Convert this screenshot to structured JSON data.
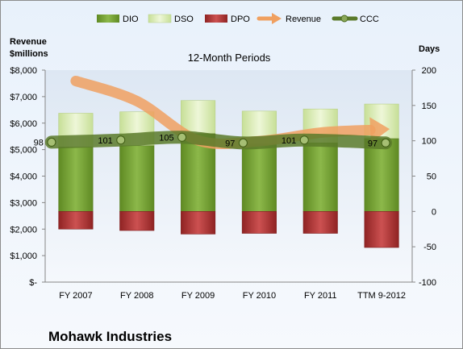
{
  "chart_data": {
    "type": "bar",
    "title": "12-Month Periods",
    "footer": "Mohawk Industries",
    "categories": [
      "FY 2007",
      "FY 2008",
      "FY 2009",
      "FY 2010",
      "FY 2011",
      "TTM 9-2012"
    ],
    "left_axis": {
      "label_line1": "Revenue",
      "label_line2": "$millions",
      "min": 0,
      "max": 8000,
      "step": 1000,
      "tick_labels": [
        "$-",
        "$1,000",
        "$2,000",
        "$3,000",
        "$4,000",
        "$5,000",
        "$6,000",
        "$7,000",
        "$8,000"
      ]
    },
    "right_axis": {
      "label": "Days",
      "min": -100,
      "max": 200,
      "step": 50,
      "tick_labels": [
        "-100",
        "-50",
        "0",
        "50",
        "100",
        "150",
        "200"
      ]
    },
    "series": [
      {
        "name": "DIO",
        "axis": "right",
        "kind": "bar",
        "values": [
          91,
          93,
          110,
          95,
          97,
          103
        ]
      },
      {
        "name": "DSO",
        "axis": "right",
        "kind": "bar",
        "values": [
          48,
          48,
          47,
          47,
          48,
          49
        ]
      },
      {
        "name": "DPO",
        "axis": "right",
        "kind": "bar",
        "values": [
          -25,
          -27,
          -32,
          -31,
          -31,
          -51
        ]
      },
      {
        "name": "Revenue",
        "axis": "left",
        "kind": "line",
        "values": [
          7590,
          6830,
          5350,
          5320,
          5640,
          5760
        ]
      },
      {
        "name": "CCC",
        "axis": "right",
        "kind": "line",
        "values": [
          98,
          101,
          105,
          97,
          101,
          97
        ]
      }
    ],
    "ccc_labels": [
      "98",
      "101",
      "105",
      "97",
      "101",
      "97"
    ],
    "legend_position": "top",
    "grid": false
  },
  "colors": {
    "dio": "#77a035",
    "dso": "#d9ebb0",
    "dpo": "#b33a3a",
    "revenue": "#f0a060",
    "ccc": "#5a7a2a"
  }
}
